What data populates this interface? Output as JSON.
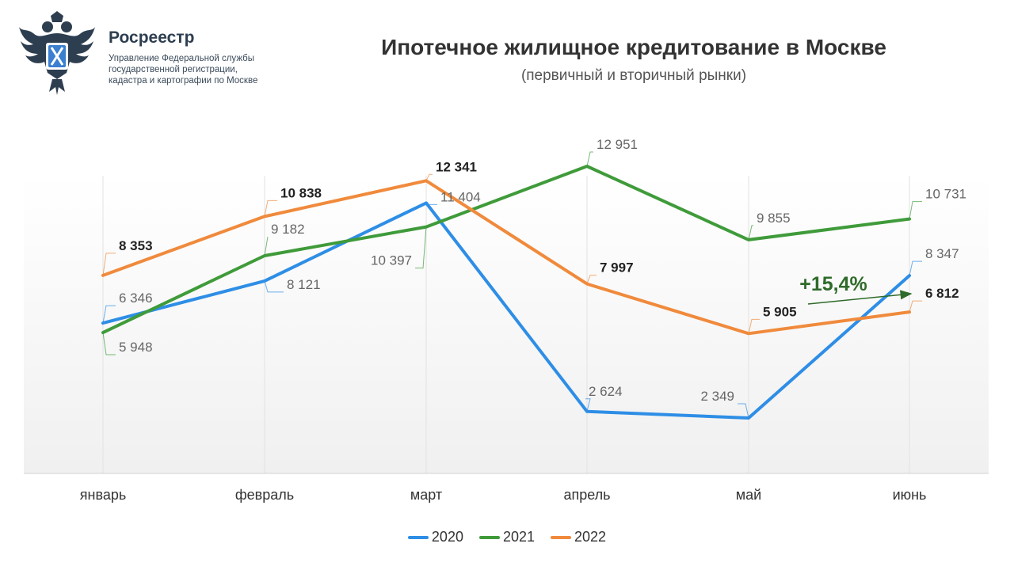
{
  "header": {
    "org_name": "Росреестр",
    "org_sub_lines": [
      "Управление Федеральной службы",
      "государственной регистрации,",
      "кадастра и картографии по Москве"
    ]
  },
  "colors": {
    "series_2020": "#2e8ee6",
    "series_2021": "#3f9b3a",
    "series_2022": "#f08a3c",
    "annotation": "#2f6b2a"
  },
  "chart_data": {
    "type": "line",
    "title": "Ипотечное жилищное кредитование в Москве",
    "subtitle": "(первичный и вторичный рынки)",
    "categories": [
      "январь",
      "февраль",
      "март",
      "апрель",
      "май",
      "июнь"
    ],
    "series": [
      {
        "name": "2020",
        "values": [
          6346,
          8121,
          11404,
          2624,
          2349,
          8347
        ],
        "labels": [
          "6 346",
          "8 121",
          "11 404",
          "2 624",
          "2 349",
          "8 347"
        ]
      },
      {
        "name": "2021",
        "values": [
          5948,
          9182,
          10397,
          12951,
          9855,
          10731
        ],
        "labels": [
          "5 948",
          "9 182",
          "10 397",
          "12 951",
          "9 855",
          "10 731"
        ]
      },
      {
        "name": "2022",
        "values": [
          8353,
          10838,
          12341,
          7997,
          5905,
          6812
        ],
        "labels": [
          "8 353",
          "10 838",
          "12 341",
          "7 997",
          "5 905",
          "6 812"
        ]
      }
    ],
    "annotation": {
      "text": "+15,4%",
      "from": "май",
      "to": "июнь",
      "series": "2022"
    },
    "grid": "vertical",
    "legend": "bottom"
  }
}
